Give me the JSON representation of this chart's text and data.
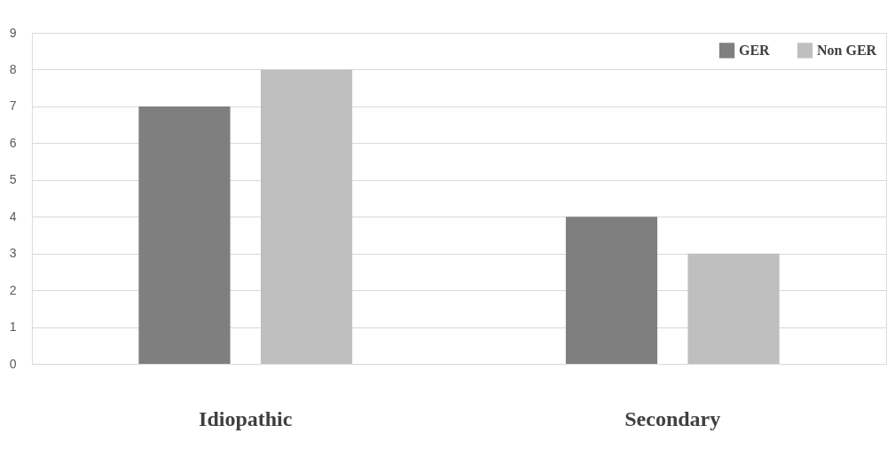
{
  "chart_data": {
    "type": "bar",
    "categories": [
      "Idiopathic",
      "Secondary"
    ],
    "series": [
      {
        "name": "GER",
        "color": "#7f7f7f",
        "values": [
          7,
          4
        ]
      },
      {
        "name": "Non GER",
        "color": "#bfbfbf",
        "values": [
          8,
          3
        ]
      }
    ],
    "ylim": [
      0,
      9
    ],
    "yticks": [
      0,
      1,
      2,
      3,
      4,
      5,
      6,
      7,
      8,
      9
    ],
    "grid": "y",
    "legend": "top right"
  }
}
